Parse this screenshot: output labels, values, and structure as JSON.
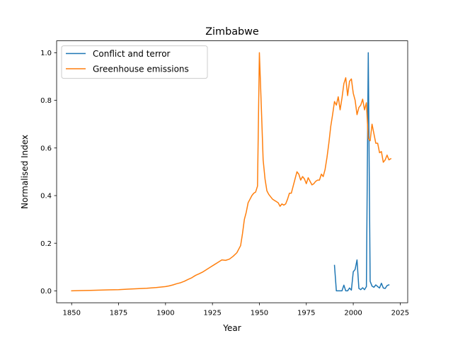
{
  "chart_data": {
    "type": "line",
    "title": "Zimbabwe",
    "xlabel": "Year",
    "ylabel": "Normalised Index",
    "xlim": [
      1842,
      2029
    ],
    "ylim": [
      -0.05,
      1.05
    ],
    "xticks": [
      1850,
      1875,
      1900,
      1925,
      1950,
      1975,
      2000,
      2025
    ],
    "yticks": [
      0.0,
      0.2,
      0.4,
      0.6,
      0.8,
      1.0
    ],
    "grid": false,
    "legend": "top-left",
    "series": [
      {
        "name": "Conflict and terror",
        "color": "#1f77b4",
        "x": [
          1990,
          1991,
          1992,
          1993,
          1994,
          1995,
          1996,
          1997,
          1998,
          1999,
          2000,
          2001,
          2002,
          2003,
          2004,
          2005,
          2006,
          2007,
          2008,
          2009,
          2010,
          2011,
          2012,
          2013,
          2014,
          2015,
          2016,
          2017,
          2018,
          2019
        ],
        "y": [
          0.107,
          0.0,
          0.0,
          0.0,
          0.0,
          0.024,
          0.0,
          0.0,
          0.012,
          0.003,
          0.08,
          0.09,
          0.13,
          0.01,
          0.005,
          0.013,
          0.005,
          0.018,
          1.0,
          0.04,
          0.02,
          0.015,
          0.025,
          0.018,
          0.012,
          0.032,
          0.012,
          0.01,
          0.022,
          0.025
        ]
      },
      {
        "name": "Greenhouse emissions",
        "color": "#ff7f0e",
        "x": [
          1850,
          1855,
          1860,
          1865,
          1870,
          1875,
          1880,
          1885,
          1890,
          1895,
          1900,
          1902,
          1904,
          1906,
          1908,
          1910,
          1912,
          1914,
          1916,
          1918,
          1920,
          1922,
          1924,
          1926,
          1928,
          1930,
          1932,
          1934,
          1936,
          1938,
          1940,
          1941,
          1942,
          1943,
          1944,
          1945,
          1946,
          1947,
          1948,
          1949,
          1950,
          1951,
          1952,
          1953,
          1954,
          1955,
          1956,
          1957,
          1958,
          1959,
          1960,
          1961,
          1962,
          1963,
          1964,
          1965,
          1966,
          1967,
          1968,
          1969,
          1970,
          1971,
          1972,
          1973,
          1974,
          1975,
          1976,
          1977,
          1978,
          1979,
          1980,
          1981,
          1982,
          1983,
          1984,
          1985,
          1986,
          1987,
          1988,
          1989,
          1990,
          1991,
          1992,
          1993,
          1994,
          1995,
          1996,
          1997,
          1998,
          1999,
          2000,
          2001,
          2002,
          2003,
          2004,
          2005,
          2006,
          2007,
          2008,
          2009,
          2010,
          2011,
          2012,
          2013,
          2014,
          2015,
          2016,
          2017,
          2018,
          2019,
          2020
        ],
        "y": [
          0.0,
          0.001,
          0.002,
          0.003,
          0.004,
          0.005,
          0.007,
          0.009,
          0.011,
          0.014,
          0.018,
          0.021,
          0.025,
          0.03,
          0.034,
          0.04,
          0.048,
          0.055,
          0.065,
          0.072,
          0.08,
          0.09,
          0.1,
          0.11,
          0.12,
          0.13,
          0.128,
          0.133,
          0.145,
          0.16,
          0.19,
          0.24,
          0.3,
          0.33,
          0.37,
          0.385,
          0.4,
          0.41,
          0.415,
          0.44,
          1.0,
          0.78,
          0.55,
          0.47,
          0.42,
          0.405,
          0.395,
          0.385,
          0.38,
          0.375,
          0.37,
          0.355,
          0.365,
          0.36,
          0.365,
          0.385,
          0.41,
          0.41,
          0.44,
          0.47,
          0.5,
          0.49,
          0.465,
          0.48,
          0.47,
          0.45,
          0.475,
          0.46,
          0.445,
          0.45,
          0.46,
          0.465,
          0.465,
          0.49,
          0.48,
          0.51,
          0.56,
          0.62,
          0.69,
          0.74,
          0.795,
          0.78,
          0.815,
          0.76,
          0.81,
          0.87,
          0.895,
          0.82,
          0.88,
          0.89,
          0.83,
          0.8,
          0.74,
          0.77,
          0.78,
          0.805,
          0.76,
          0.79,
          0.64,
          0.63,
          0.7,
          0.66,
          0.62,
          0.62,
          0.58,
          0.585,
          0.54,
          0.55,
          0.57,
          0.55,
          0.555
        ]
      }
    ]
  }
}
